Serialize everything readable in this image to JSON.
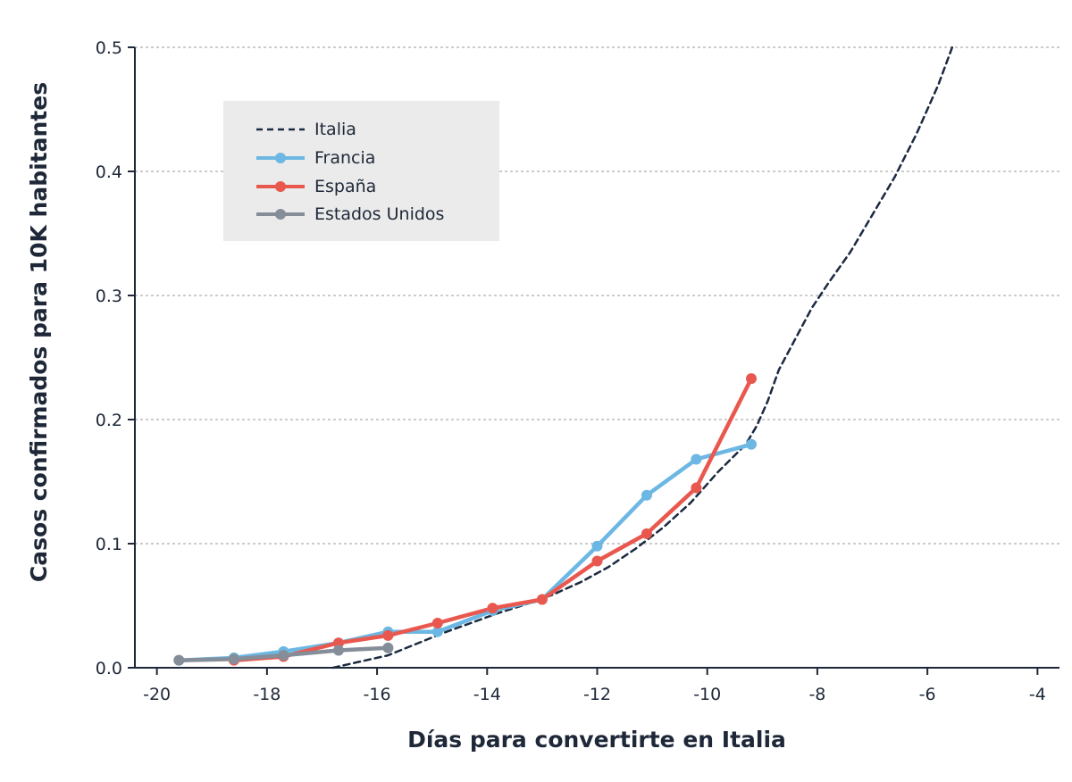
{
  "chart_data": {
    "type": "line",
    "xlabel": "Días para convertirte en Italia",
    "ylabel": "Casos confirmados para 10K habitantes",
    "xlim": [
      -20.4,
      -3.6
    ],
    "ylim": [
      0,
      0.5
    ],
    "xticks": [
      -20,
      -18,
      -16,
      -14,
      -12,
      -10,
      -8,
      -6,
      -4
    ],
    "xtick_labels": [
      "-20",
      "-18",
      "-16",
      "-14",
      "-12",
      "-10",
      "-8",
      "-6",
      "-4"
    ],
    "yticks": [
      0,
      0.1,
      0.2,
      0.3,
      0.4,
      0.5
    ],
    "ytick_labels": [
      "0.0",
      "0.1",
      "0.2",
      "0.3",
      "0.4",
      "0.5"
    ],
    "grid": "horizontal dashed",
    "legend_position": "top-left",
    "series": [
      {
        "name": "Italia",
        "style": "dashed",
        "markers": false,
        "color": "#1b2a41",
        "x": [
          -16.8,
          -16.4,
          -15.8,
          -15.3,
          -14.8,
          -14.3,
          -13.8,
          -13.3,
          -12.8,
          -12.3,
          -11.8,
          -11.3,
          -10.8,
          -10.3,
          -9.8,
          -9.3,
          -9.1,
          -8.9,
          -8.7,
          -8.4,
          -8.1,
          -7.8,
          -7.4,
          -7.0,
          -6.6,
          -6.2,
          -5.8,
          -5.55
        ],
        "y": [
          0.0,
          0.004,
          0.01,
          0.019,
          0.028,
          0.036,
          0.044,
          0.051,
          0.059,
          0.069,
          0.081,
          0.096,
          0.113,
          0.133,
          0.158,
          0.18,
          0.195,
          0.215,
          0.24,
          0.265,
          0.29,
          0.31,
          0.335,
          0.365,
          0.395,
          0.43,
          0.47,
          0.5
        ]
      },
      {
        "name": "Francia",
        "style": "solid",
        "markers": true,
        "color": "#6cb7e3",
        "x": [
          -19.6,
          -18.6,
          -17.7,
          -16.7,
          -15.8,
          -14.9,
          -13.9,
          -13.0,
          -12.0,
          -11.1,
          -10.2,
          -9.2
        ],
        "y": [
          0.006,
          0.008,
          0.013,
          0.02,
          0.029,
          0.029,
          0.046,
          0.055,
          0.098,
          0.139,
          0.168,
          0.18
        ]
      },
      {
        "name": "España",
        "style": "solid",
        "markers": true,
        "color": "#e9584e",
        "x": [
          -18.6,
          -17.7,
          -16.7,
          -15.8,
          -14.9,
          -13.9,
          -13.0,
          -12.0,
          -11.1,
          -10.2,
          -9.2
        ],
        "y": [
          0.006,
          0.009,
          0.02,
          0.026,
          0.036,
          0.048,
          0.055,
          0.086,
          0.108,
          0.145,
          0.233
        ]
      },
      {
        "name": "Estados Unidos",
        "style": "solid",
        "markers": true,
        "color": "#858d98",
        "x": [
          -19.6,
          -18.6,
          -17.7,
          -16.7,
          -15.8
        ],
        "y": [
          0.006,
          0.007,
          0.01,
          0.014,
          0.016
        ]
      }
    ]
  },
  "colors": {
    "axis": "#1e2838",
    "grid": "#9a9a9a",
    "legend_bg": "#ebebeb",
    "overlap_marker": "#4f2c35"
  }
}
